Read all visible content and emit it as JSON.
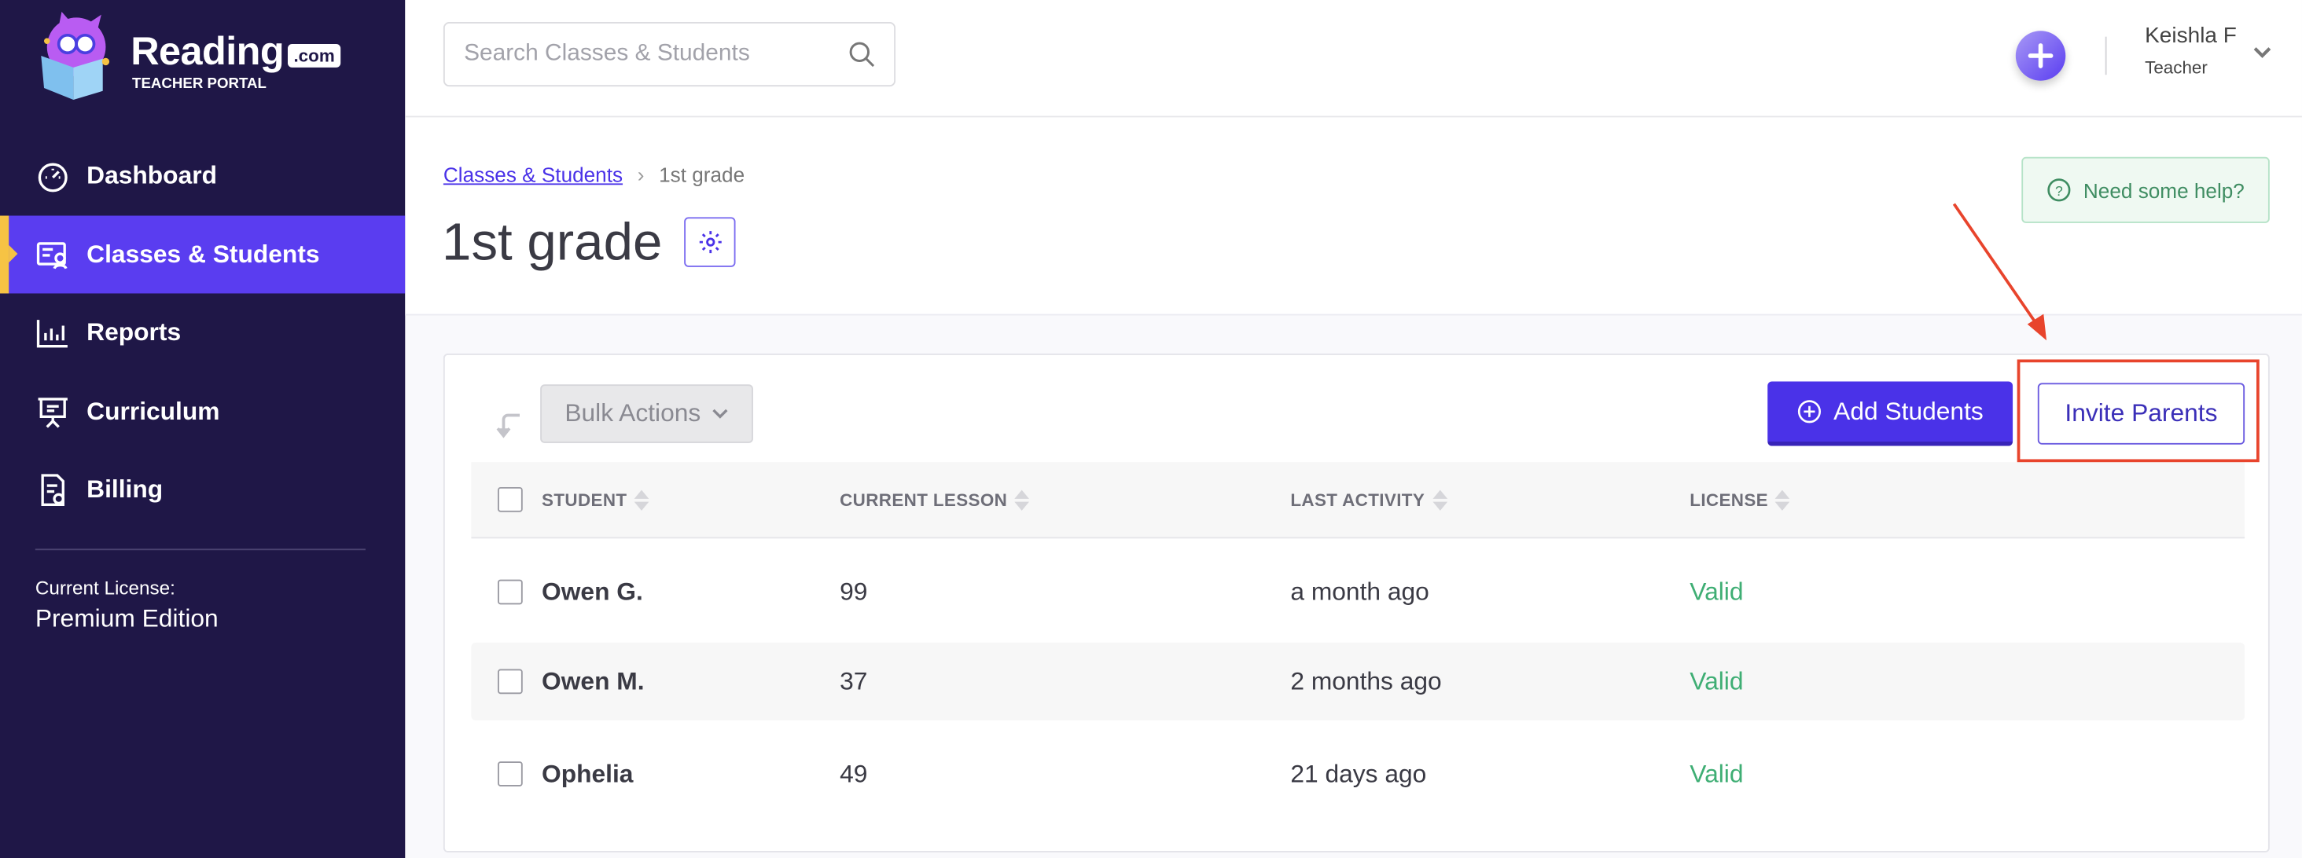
{
  "brand": {
    "name": "Reading",
    "tld": ".com",
    "subtitle": "TEACHER PORTAL"
  },
  "sidebar": {
    "items": [
      {
        "label": "Dashboard",
        "icon": "gauge-icon",
        "active": false
      },
      {
        "label": "Classes & Students",
        "icon": "classes-icon",
        "active": true
      },
      {
        "label": "Reports",
        "icon": "bar-chart-icon",
        "active": false
      },
      {
        "label": "Curriculum",
        "icon": "presentation-icon",
        "active": false
      },
      {
        "label": "Billing",
        "icon": "invoice-icon",
        "active": false
      }
    ],
    "license_label": "Current License:",
    "license_value": "Premium Edition"
  },
  "header": {
    "search_placeholder": "Search Classes & Students",
    "user_name": "Keishla F",
    "user_role": "Teacher"
  },
  "page": {
    "breadcrumb": [
      "Classes & Students",
      "1st grade"
    ],
    "title": "1st grade",
    "help_label": "Need some help?"
  },
  "toolbar": {
    "bulk_actions": "Bulk Actions",
    "add_students": "Add Students",
    "invite_parents": "Invite Parents"
  },
  "table": {
    "columns": [
      "STUDENT",
      "CURRENT LESSON",
      "LAST ACTIVITY",
      "LICENSE"
    ],
    "rows": [
      {
        "student": "Owen G.",
        "lesson": "99",
        "activity": "a month ago",
        "license": "Valid"
      },
      {
        "student": "Owen M.",
        "lesson": "37",
        "activity": "2 months ago",
        "license": "Valid"
      },
      {
        "student": "Ophelia",
        "lesson": "49",
        "activity": "21 days ago",
        "license": "Valid"
      }
    ]
  },
  "colors": {
    "sidebar": "#1f1747",
    "accent": "#5a3df0",
    "primary_button": "#4a32e8",
    "valid": "#3fae74",
    "annotation": "#e8442c"
  }
}
